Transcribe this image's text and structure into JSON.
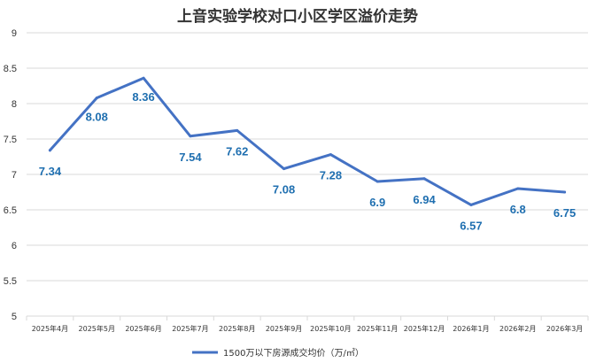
{
  "chart_data": {
    "type": "line",
    "title": "上音实验学校对口小区学区溢价走势",
    "categories": [
      "2025年4月",
      "2025年5月",
      "2025年6月",
      "2025年7月",
      "2025年8月",
      "2025年9月",
      "2025年10月",
      "2025年11月",
      "2025年12月",
      "2026年1月",
      "2026年2月",
      "2026年3月"
    ],
    "series": [
      {
        "name": "1500万以下房源成交均价（万/㎡）",
        "values": [
          7.34,
          8.08,
          8.36,
          7.54,
          7.62,
          7.08,
          7.28,
          6.9,
          6.94,
          6.57,
          6.8,
          6.75
        ],
        "labels": [
          "7.34",
          "8.08",
          "8.36",
          "7.54",
          "7.62",
          "7.08",
          "7.28",
          "6.9",
          "6.94",
          "6.57",
          "6.8",
          "6.75"
        ]
      }
    ],
    "ylim": [
      5,
      9
    ],
    "yticks": [
      "5",
      "5.5",
      "6",
      "6.5",
      "7",
      "7.5",
      "8",
      "8.5",
      "9"
    ],
    "ytick_values": [
      5,
      5.5,
      6,
      6.5,
      7,
      7.5,
      8,
      8.5,
      9
    ],
    "grid": true,
    "legend_position": "bottom",
    "colors": {
      "line": "#4472c4",
      "label": "#1f6fb0",
      "grid": "#d9d9d9"
    }
  }
}
